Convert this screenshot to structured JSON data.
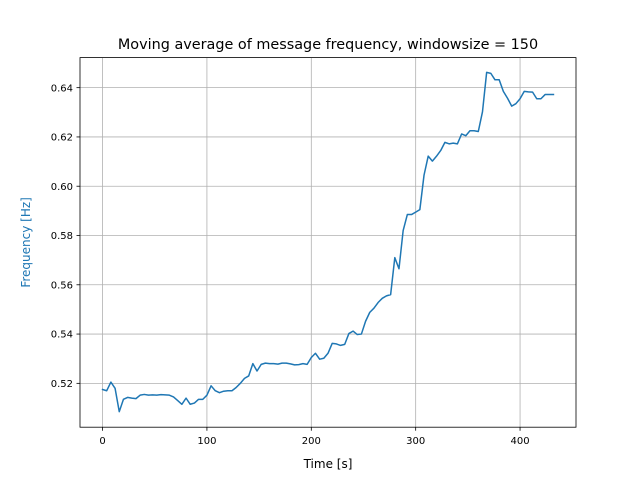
{
  "colors": {
    "series": "#1f77b4",
    "grid": "#b0b0b0",
    "axes": "#000000",
    "ylabel": "#1f77b4"
  },
  "chart_data": {
    "type": "line",
    "title": "Moving average of message frequency, windowsize = 150",
    "xlabel": "Time [s]",
    "ylabel": "Frequency [Hz]",
    "xlim": [
      -21.6,
      453.6
    ],
    "ylim": [
      0.5022,
      0.6522
    ],
    "grid": true,
    "xticks": [
      0,
      100,
      200,
      300,
      400
    ],
    "xtick_labels": [
      "0",
      "100",
      "200",
      "300",
      "400"
    ],
    "yticks": [
      0.52,
      0.54,
      0.56,
      0.58,
      0.6,
      0.62,
      0.64
    ],
    "ytick_labels": [
      "0.52",
      "0.54",
      "0.56",
      "0.58",
      "0.60",
      "0.62",
      "0.64"
    ],
    "series": [
      {
        "x": [
          0,
          4,
          8,
          12,
          16,
          20,
          24,
          28,
          32,
          36,
          40,
          44,
          48,
          52,
          56,
          60,
          64,
          68,
          72,
          76,
          80,
          84,
          88,
          92,
          96,
          100,
          104,
          108,
          112,
          116,
          120,
          124,
          128,
          132,
          136,
          140,
          144,
          148,
          152,
          156,
          160,
          164,
          168,
          172,
          176,
          180,
          184,
          188,
          192,
          196,
          200,
          204,
          208,
          212,
          216,
          220,
          224,
          228,
          232,
          236,
          240,
          244,
          248,
          252,
          256,
          260,
          264,
          268,
          272,
          276,
          280,
          284,
          288,
          292,
          296,
          300,
          304,
          308,
          312,
          316,
          320,
          324,
          328,
          332,
          336,
          340,
          344,
          348,
          352,
          356,
          360,
          364,
          368,
          372,
          376,
          380,
          384,
          388,
          392,
          396,
          400,
          404,
          408,
          412,
          416,
          420,
          424,
          428,
          432
        ],
        "y": [
          0.5175,
          0.517,
          0.5205,
          0.518,
          0.5085,
          0.5135,
          0.5143,
          0.514,
          0.5138,
          0.5152,
          0.5155,
          0.5152,
          0.5153,
          0.5152,
          0.5154,
          0.5153,
          0.5152,
          0.5145,
          0.513,
          0.5115,
          0.514,
          0.5115,
          0.512,
          0.5135,
          0.5135,
          0.5152,
          0.519,
          0.517,
          0.5162,
          0.5168,
          0.517,
          0.517,
          0.5183,
          0.52,
          0.522,
          0.523,
          0.528,
          0.525,
          0.5277,
          0.5282,
          0.528,
          0.528,
          0.5278,
          0.5282,
          0.5282,
          0.5279,
          0.5275,
          0.5276,
          0.528,
          0.5277,
          0.5305,
          0.5322,
          0.5298,
          0.5302,
          0.5322,
          0.5362,
          0.536,
          0.5354,
          0.5358,
          0.5402,
          0.5412,
          0.5398,
          0.54,
          0.5452,
          0.5488,
          0.5505,
          0.5528,
          0.5545,
          0.5555,
          0.556,
          0.571,
          0.5665,
          0.582,
          0.5885,
          0.5885,
          0.5895,
          0.5905,
          0.6045,
          0.6122,
          0.6102,
          0.6122,
          0.6145,
          0.6178,
          0.6172,
          0.6175,
          0.6172,
          0.6212,
          0.6205,
          0.6225,
          0.6225,
          0.6222,
          0.6302,
          0.6462,
          0.6458,
          0.6432,
          0.6432,
          0.6385,
          0.6357,
          0.6325,
          0.6335,
          0.6355,
          0.6385,
          0.6383,
          0.6382,
          0.6355,
          0.6355,
          0.6372,
          0.6372,
          0.6372
        ]
      }
    ]
  }
}
